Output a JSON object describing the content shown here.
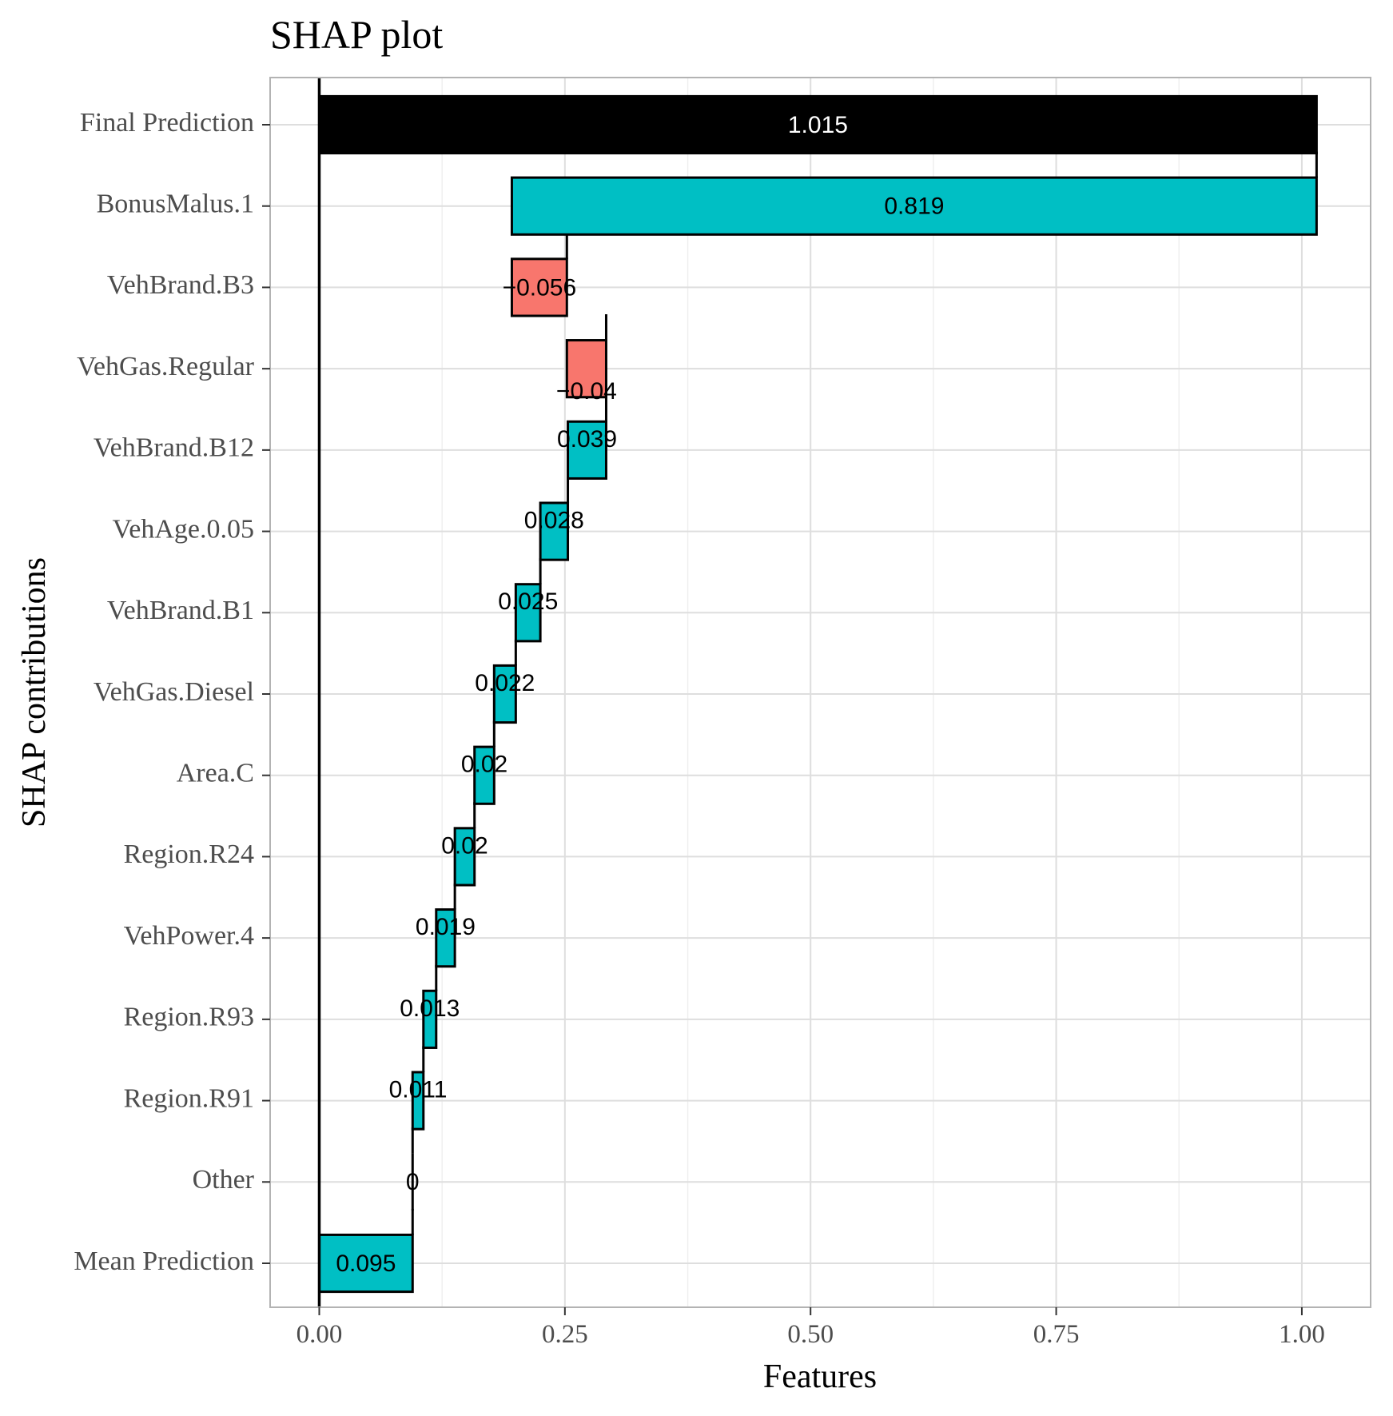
{
  "chart_data": {
    "type": "bar",
    "orientation": "horizontal",
    "subtype": "waterfall",
    "title": "SHAP plot",
    "xlabel": "Features",
    "ylabel": "SHAP contributions",
    "xlim": [
      -0.05,
      1.07
    ],
    "x_ticks": [
      0.0,
      0.25,
      0.5,
      0.75,
      1.0
    ],
    "x_tick_labels": [
      "0.00",
      "0.25",
      "0.50",
      "0.75",
      "1.00"
    ],
    "grid": true,
    "legend": "none",
    "colors": {
      "positive": "#00BFC4",
      "negative": "#F8766D",
      "total": "#000000",
      "outline": "#000000",
      "panel_border": "#b3b3b3",
      "grid_major": "#dedede",
      "grid_minor": "#efefef"
    },
    "bars": [
      {
        "category": "Final Prediction",
        "start": 0.0,
        "end": 1.015,
        "value": 1.015,
        "label": "1.015",
        "kind": "total"
      },
      {
        "category": "BonusMalus.1",
        "start": 0.196,
        "end": 1.015,
        "value": 0.819,
        "label": "0.819",
        "kind": "positive"
      },
      {
        "category": "VehBrand.B3",
        "start": 0.196,
        "end": 0.252,
        "value": -0.056,
        "label": "−0.056",
        "kind": "negative"
      },
      {
        "category": "VehGas.Regular",
        "start": 0.252,
        "end": 0.292,
        "value": -0.04,
        "label": "−0.04",
        "kind": "negative"
      },
      {
        "category": "VehBrand.B12",
        "start": 0.253,
        "end": 0.292,
        "value": 0.039,
        "label": "0.039",
        "kind": "positive"
      },
      {
        "category": "VehAge.0.05",
        "start": 0.225,
        "end": 0.253,
        "value": 0.028,
        "label": "0.028",
        "kind": "positive"
      },
      {
        "category": "VehBrand.B1",
        "start": 0.2,
        "end": 0.225,
        "value": 0.025,
        "label": "0.025",
        "kind": "positive"
      },
      {
        "category": "VehGas.Diesel",
        "start": 0.178,
        "end": 0.2,
        "value": 0.022,
        "label": "0.022",
        "kind": "positive"
      },
      {
        "category": "Area.C",
        "start": 0.158,
        "end": 0.178,
        "value": 0.02,
        "label": "0.02",
        "kind": "positive"
      },
      {
        "category": "Region.R24",
        "start": 0.138,
        "end": 0.158,
        "value": 0.02,
        "label": "0.02",
        "kind": "positive"
      },
      {
        "category": "VehPower.4",
        "start": 0.119,
        "end": 0.138,
        "value": 0.019,
        "label": "0.019",
        "kind": "positive"
      },
      {
        "category": "Region.R93",
        "start": 0.106,
        "end": 0.119,
        "value": 0.013,
        "label": "0.013",
        "kind": "positive"
      },
      {
        "category": "Region.R91",
        "start": 0.095,
        "end": 0.106,
        "value": 0.011,
        "label": "0.011",
        "kind": "positive"
      },
      {
        "category": "Other",
        "start": 0.095,
        "end": 0.095,
        "value": 0.0,
        "label": "0",
        "kind": "positive"
      },
      {
        "category": "Mean Prediction",
        "start": 0.0,
        "end": 0.095,
        "value": 0.095,
        "label": "0.095",
        "kind": "positive"
      }
    ]
  }
}
